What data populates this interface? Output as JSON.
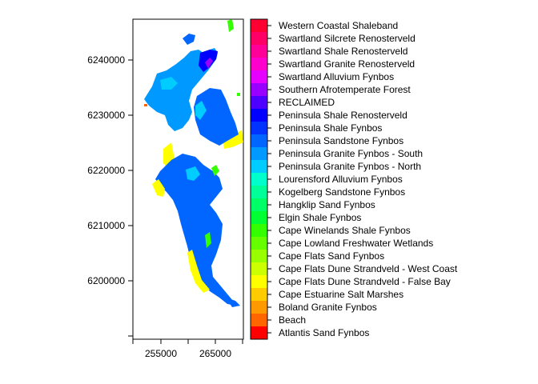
{
  "map": {
    "x_ticks": [
      "255000",
      "265000"
    ],
    "y_ticks": [
      "6200000",
      "6210000",
      "6220000",
      "6230000",
      "6240000"
    ],
    "legend": [
      {
        "label": "Western Coastal Shaleband",
        "color": "#ff0033"
      },
      {
        "label": "Swartland Silcrete Renosterveld",
        "color": "#ff0066"
      },
      {
        "label": "Swartland Shale Renosterveld",
        "color": "#ff0099"
      },
      {
        "label": "Swartland Granite Renosterveld",
        "color": "#ff00cc"
      },
      {
        "label": "Swartland Alluvium Fynbos",
        "color": "#e600ff"
      },
      {
        "label": "Southern Afrotemperate Forest",
        "color": "#9900ff"
      },
      {
        "label": "RECLAIMED",
        "color": "#4d00ff"
      },
      {
        "label": "Peninsula Shale Renosterveld",
        "color": "#0000ff"
      },
      {
        "label": "Peninsula Shale Fynbos",
        "color": "#0033ff"
      },
      {
        "label": "Peninsula Sandstone Fynbos",
        "color": "#0066ff"
      },
      {
        "label": "Peninsula Granite Fynbos - South",
        "color": "#0099ff"
      },
      {
        "label": "Peninsula Granite Fynbos - North",
        "color": "#00ccff"
      },
      {
        "label": "Lourensford Alluvium Fynbos",
        "color": "#00ffcc"
      },
      {
        "label": "Kogelberg Sandstone Fynbos",
        "color": "#00ff99"
      },
      {
        "label": "Hangklip Sand Fynbos",
        "color": "#00ff66"
      },
      {
        "label": "Elgin Shale Fynbos",
        "color": "#00ff33"
      },
      {
        "label": "Cape Winelands Shale Fynbos",
        "color": "#33ff00"
      },
      {
        "label": "Cape Lowland Freshwater Wetlands",
        "color": "#66ff00"
      },
      {
        "label": "Cape Flats Sand Fynbos",
        "color": "#99ff00"
      },
      {
        "label": "Cape Flats Dune Strandveld - West Coast",
        "color": "#ccff00"
      },
      {
        "label": "Cape Flats Dune Strandveld - False Bay",
        "color": "#ffff00"
      },
      {
        "label": "Cape Estuarine Salt Marshes",
        "color": "#ffcc00"
      },
      {
        "label": "Boland Granite Fynbos",
        "color": "#ff9900"
      },
      {
        "label": "Beach",
        "color": "#ff6600"
      },
      {
        "label": "Atlantis Sand Fynbos",
        "color": "#ff0000"
      }
    ]
  }
}
